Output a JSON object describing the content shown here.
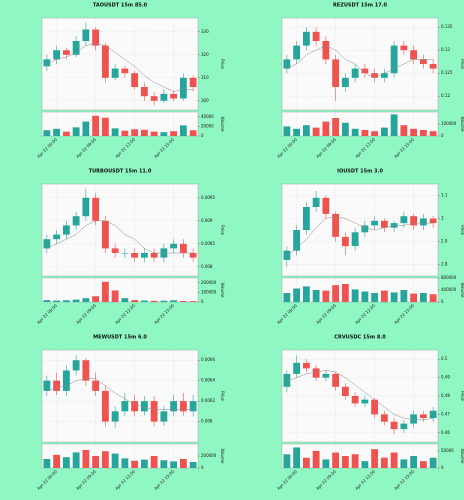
{
  "chart_data": [
    {
      "type": "candlestick",
      "title": "TAOUSDT 15m 85.0",
      "ylabel": "Price",
      "vol_label": "Volume",
      "open": [
        315,
        318,
        322,
        320,
        326,
        331,
        324,
        310,
        314,
        312,
        306,
        302,
        300,
        303,
        301,
        310
      ],
      "high": [
        320,
        324,
        323,
        328,
        334,
        332,
        325,
        316,
        315,
        313,
        308,
        304,
        305,
        304,
        312,
        311
      ],
      "low": [
        313,
        316,
        318,
        319,
        324,
        322,
        308,
        309,
        310,
        305,
        300,
        298,
        299,
        300,
        300,
        304
      ],
      "close": [
        318,
        322,
        320,
        326,
        331,
        324,
        310,
        314,
        312,
        306,
        302,
        300,
        303,
        301,
        310,
        306
      ],
      "volume": [
        12000,
        15000,
        9000,
        18000,
        30000,
        42000,
        38000,
        16000,
        11000,
        14000,
        13000,
        9000,
        8000,
        10000,
        22000,
        12000
      ],
      "ma": [
        316,
        318,
        319,
        321,
        324,
        325,
        324,
        321,
        318,
        315,
        311,
        308,
        306,
        304,
        305,
        305
      ],
      "ylim": [
        296,
        336
      ],
      "yticks": [
        300,
        310,
        320,
        330
      ],
      "vol_ylim": [
        0,
        50000
      ],
      "vol_yticks": [
        0,
        20000,
        40000
      ],
      "xticks": [
        {
          "value": 1,
          "label": "Apr 22 06:00"
        },
        {
          "value": 5,
          "label": "Apr 22 09:00"
        },
        {
          "value": 9,
          "label": "Apr 22 12:00"
        },
        {
          "value": 13,
          "label": "Apr 22 15:00"
        }
      ],
      "up_color": "#26a69a",
      "down_color": "#ef5350",
      "ma_color": "#8c8c8c",
      "grid": true
    },
    {
      "type": "candlestick",
      "title": "REZUSDT 15m 17.0",
      "ylabel": "Price",
      "vol_label": "Volume",
      "open": [
        0.126,
        0.128,
        0.131,
        0.134,
        0.132,
        0.128,
        0.122,
        0.124,
        0.126,
        0.125,
        0.124,
        0.125,
        0.131,
        0.13,
        0.128,
        0.127
      ],
      "high": [
        0.129,
        0.132,
        0.135,
        0.135,
        0.133,
        0.129,
        0.125,
        0.127,
        0.127,
        0.126,
        0.126,
        0.132,
        0.132,
        0.131,
        0.129,
        0.128
      ],
      "low": [
        0.125,
        0.127,
        0.13,
        0.131,
        0.127,
        0.119,
        0.121,
        0.123,
        0.124,
        0.123,
        0.123,
        0.124,
        0.129,
        0.127,
        0.126,
        0.125
      ],
      "close": [
        0.128,
        0.131,
        0.134,
        0.132,
        0.128,
        0.122,
        0.124,
        0.126,
        0.125,
        0.124,
        0.125,
        0.131,
        0.13,
        0.128,
        0.127,
        0.126
      ],
      "volume": [
        80000,
        60000,
        90000,
        70000,
        120000,
        150000,
        110000,
        60000,
        50000,
        40000,
        70000,
        180000,
        90000,
        60000,
        50000,
        40000
      ],
      "ma": [
        0.126,
        0.127,
        0.129,
        0.13,
        0.131,
        0.13,
        0.128,
        0.127,
        0.125,
        0.124,
        0.125,
        0.126,
        0.127,
        0.128,
        0.128,
        0.128
      ],
      "ylim": [
        0.117,
        0.137
      ],
      "yticks": [
        0.12,
        0.125,
        0.13,
        0.135
      ],
      "vol_ylim": [
        0,
        200000
      ],
      "vol_yticks": [
        0,
        100000
      ],
      "xticks": [
        {
          "value": 1,
          "label": "Apr 22 06:00"
        },
        {
          "value": 5,
          "label": "Apr 22 09:00"
        },
        {
          "value": 9,
          "label": "Apr 22 12:00"
        },
        {
          "value": 13,
          "label": "Apr 22 15:00"
        }
      ],
      "up_color": "#26a69a",
      "down_color": "#ef5350",
      "ma_color": "#8c8c8c",
      "grid": true
    },
    {
      "type": "candlestick",
      "title": "TURBOUSDT 15m 11.0",
      "ylabel": "Price",
      "vol_label": "Volume",
      "open": [
        0.0084,
        0.0086,
        0.0087,
        0.0089,
        0.0091,
        0.0095,
        0.009,
        0.0084,
        0.0083,
        0.0083,
        0.0082,
        0.0083,
        0.0082,
        0.0084,
        0.0085,
        0.0083
      ],
      "high": [
        0.0087,
        0.0088,
        0.009,
        0.0092,
        0.0097,
        0.0096,
        0.0091,
        0.0085,
        0.0084,
        0.0084,
        0.0084,
        0.0084,
        0.0085,
        0.0086,
        0.0086,
        0.0084
      ],
      "low": [
        0.0083,
        0.0085,
        0.0086,
        0.0088,
        0.009,
        0.0089,
        0.0083,
        0.0082,
        0.0082,
        0.0081,
        0.0081,
        0.0081,
        0.0081,
        0.0083,
        0.0082,
        0.0081
      ],
      "close": [
        0.0086,
        0.0087,
        0.0089,
        0.0091,
        0.0095,
        0.009,
        0.0084,
        0.0083,
        0.0083,
        0.0082,
        0.0083,
        0.0082,
        0.0084,
        0.0085,
        0.0083,
        0.0082
      ],
      "volume": [
        20000,
        15000,
        18000,
        25000,
        40000,
        60000,
        210000,
        120000,
        40000,
        20000,
        15000,
        12000,
        14000,
        18000,
        10000,
        9000
      ],
      "ma": [
        0.0084,
        0.0085,
        0.0086,
        0.0087,
        0.0089,
        0.009,
        0.009,
        0.0089,
        0.0087,
        0.0086,
        0.0084,
        0.0083,
        0.0083,
        0.0083,
        0.0083,
        0.0083
      ],
      "ylim": [
        0.0078,
        0.0098
      ],
      "yticks": [
        0.008,
        0.0085,
        0.009,
        0.0095
      ],
      "vol_ylim": [
        0,
        250000
      ],
      "vol_yticks": [
        0,
        100000,
        200000
      ],
      "xticks": [
        {
          "value": 1,
          "label": "Apr 22 06:00"
        },
        {
          "value": 5,
          "label": "Apr 22 09:00"
        },
        {
          "value": 9,
          "label": "Apr 22 12:00"
        },
        {
          "value": 13,
          "label": "Apr 22 15:00"
        }
      ],
      "up_color": "#26a69a",
      "down_color": "#ef5350",
      "ma_color": "#8c8c8c",
      "grid": true
    },
    {
      "type": "candlestick",
      "title": "IOUSDT 15m 3.0",
      "ylabel": "Price",
      "vol_label": "Volume",
      "open": [
        2.82,
        2.86,
        2.95,
        3.05,
        3.09,
        3.02,
        2.92,
        2.88,
        2.94,
        2.97,
        2.99,
        2.96,
        2.98,
        3.01,
        2.97,
        3.0
      ],
      "high": [
        2.88,
        2.97,
        3.07,
        3.12,
        3.1,
        3.03,
        2.94,
        2.96,
        2.99,
        3.01,
        3.0,
        2.99,
        3.03,
        3.02,
        3.02,
        3.01
      ],
      "low": [
        2.79,
        2.84,
        2.93,
        3.03,
        3.0,
        2.9,
        2.84,
        2.86,
        2.92,
        2.95,
        2.94,
        2.94,
        2.96,
        2.95,
        2.95,
        2.96
      ],
      "close": [
        2.86,
        2.95,
        3.05,
        3.09,
        3.02,
        2.92,
        2.88,
        2.94,
        2.97,
        2.99,
        2.96,
        2.98,
        3.01,
        2.97,
        3.0,
        2.98
      ],
      "volume": [
        300000,
        450000,
        520000,
        400000,
        380000,
        560000,
        600000,
        420000,
        350000,
        300000,
        380000,
        320000,
        400000,
        280000,
        300000,
        260000
      ],
      "ma": [
        2.84,
        2.87,
        2.91,
        2.96,
        3.0,
        3.01,
        3.0,
        2.98,
        2.96,
        2.95,
        2.96,
        2.97,
        2.97,
        2.98,
        2.98,
        2.98
      ],
      "ylim": [
        2.75,
        3.15
      ],
      "yticks": [
        2.8,
        2.9,
        3,
        3.1
      ],
      "vol_ylim": [
        0,
        800000
      ],
      "vol_yticks": [
        0,
        400000,
        800000
      ],
      "xticks": [
        {
          "value": 1,
          "label": "Apr 22 06:00"
        },
        {
          "value": 5,
          "label": "Apr 22 09:00"
        },
        {
          "value": 9,
          "label": "Apr 22 12:00"
        },
        {
          "value": 13,
          "label": "Apr 22 15:00"
        }
      ],
      "up_color": "#26a69a",
      "down_color": "#ef5350",
      "ma_color": "#8c8c8c",
      "grid": true
    },
    {
      "type": "candlestick",
      "title": "MEWUSDT 15m 6.0",
      "ylabel": "Price",
      "vol_label": "Volume",
      "open": [
        0.0063,
        0.0064,
        0.0063,
        0.0065,
        0.0066,
        0.0064,
        0.0063,
        0.006,
        0.0061,
        0.0062,
        0.0061,
        0.0062,
        0.006,
        0.0061,
        0.0062,
        0.0061
      ],
      "high": [
        0.00645,
        0.00648,
        0.00655,
        0.00665,
        0.00662,
        0.00648,
        0.00635,
        0.00615,
        0.00628,
        0.00626,
        0.00625,
        0.00625,
        0.00615,
        0.00626,
        0.00628,
        0.00626
      ],
      "low": [
        0.00625,
        0.00626,
        0.00625,
        0.00645,
        0.00635,
        0.00625,
        0.00595,
        0.00594,
        0.00605,
        0.00605,
        0.00606,
        0.00595,
        0.00596,
        0.00605,
        0.00606,
        0.00605
      ],
      "close": [
        0.0064,
        0.0063,
        0.0065,
        0.0066,
        0.0064,
        0.0063,
        0.006,
        0.0061,
        0.0062,
        0.0061,
        0.0062,
        0.006,
        0.0061,
        0.0062,
        0.0061,
        0.0062
      ],
      "volume": [
        150000,
        220000,
        180000,
        260000,
        300000,
        200000,
        280000,
        240000,
        160000,
        120000,
        140000,
        200000,
        130000,
        110000,
        150000,
        100000
      ],
      "ma": [
        0.0063,
        0.00633,
        0.00635,
        0.0064,
        0.00642,
        0.00642,
        0.00635,
        0.00628,
        0.00622,
        0.00617,
        0.00614,
        0.00612,
        0.00612,
        0.00612,
        0.00612,
        0.00612
      ],
      "ylim": [
        0.0058,
        0.0067
      ],
      "yticks": [
        0.006,
        0.0062,
        0.0064,
        0.0066
      ],
      "vol_ylim": [
        0,
        400000
      ],
      "vol_yticks": [
        0,
        200000
      ],
      "xticks": [
        {
          "value": 1,
          "label": "Apr 22 06:00"
        },
        {
          "value": 5,
          "label": "Apr 22 09:00"
        },
        {
          "value": 9,
          "label": "Apr 22 12:00"
        },
        {
          "value": 13,
          "label": "Apr 22 15:00"
        }
      ],
      "up_color": "#26a69a",
      "down_color": "#ef5350",
      "ma_color": "#8c8c8c",
      "grid": true
    },
    {
      "type": "candlestick",
      "title": "CRVUSDC 15m 8.0",
      "ylabel": "Price",
      "vol_label": "Volume",
      "open": [
        0.485,
        0.492,
        0.498,
        0.495,
        0.49,
        0.492,
        0.485,
        0.48,
        0.476,
        0.478,
        0.47,
        0.466,
        0.462,
        0.465,
        0.47,
        0.468
      ],
      "high": [
        0.494,
        0.502,
        0.5,
        0.497,
        0.494,
        0.493,
        0.487,
        0.482,
        0.48,
        0.479,
        0.472,
        0.468,
        0.467,
        0.472,
        0.472,
        0.474
      ],
      "low": [
        0.482,
        0.49,
        0.493,
        0.488,
        0.488,
        0.483,
        0.478,
        0.474,
        0.474,
        0.468,
        0.464,
        0.459,
        0.46,
        0.463,
        0.466,
        0.466
      ],
      "close": [
        0.492,
        0.498,
        0.495,
        0.49,
        0.492,
        0.485,
        0.48,
        0.476,
        0.478,
        0.47,
        0.466,
        0.462,
        0.465,
        0.47,
        0.468,
        0.472
      ],
      "volume": [
        40000,
        60000,
        30000,
        50000,
        25000,
        45000,
        35000,
        40000,
        20000,
        55000,
        30000,
        45000,
        25000,
        35000,
        20000,
        30000
      ],
      "ma": [
        0.488,
        0.49,
        0.492,
        0.493,
        0.494,
        0.493,
        0.49,
        0.486,
        0.482,
        0.478,
        0.474,
        0.47,
        0.468,
        0.467,
        0.467,
        0.468
      ],
      "ylim": [
        0.455,
        0.505
      ],
      "yticks": [
        0.46,
        0.47,
        0.48,
        0.49,
        0.5
      ],
      "vol_ylim": [
        0,
        70000
      ],
      "vol_yticks": [
        0,
        50000
      ],
      "xticks": [
        {
          "value": 1,
          "label": "Apr 22 06:00"
        },
        {
          "value": 5,
          "label": "Apr 22 09:00"
        },
        {
          "value": 9,
          "label": "Apr 22 12:00"
        },
        {
          "value": 13,
          "label": "Apr 22 15:00"
        }
      ],
      "up_color": "#26a69a",
      "down_color": "#ef5350",
      "ma_color": "#8c8c8c",
      "grid": true
    }
  ]
}
